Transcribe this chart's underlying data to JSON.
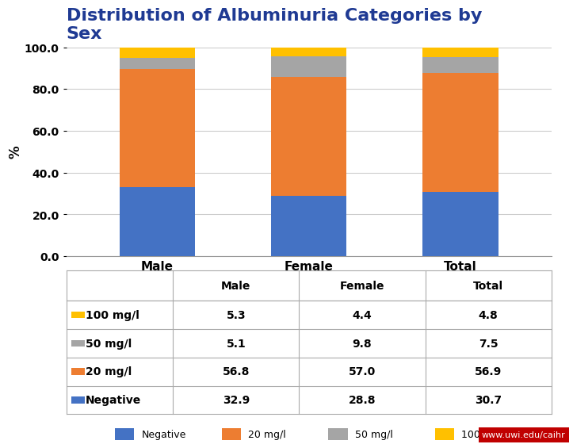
{
  "title": "Distribution of Albuminuria Categories by\nSex",
  "title_color": "#1F3A93",
  "ylabel": "%",
  "categories": [
    "Male",
    "Female",
    "Total"
  ],
  "series": {
    "Negative": [
      32.9,
      28.8,
      30.7
    ],
    "20 mg/l": [
      56.8,
      57.0,
      56.9
    ],
    "50 mg/l": [
      5.1,
      9.8,
      7.5
    ],
    "100 mg/l": [
      5.3,
      4.4,
      4.8
    ]
  },
  "colors": {
    "Negative": "#4472C4",
    "20 mg/l": "#ED7D31",
    "50 mg/l": "#A5A5A5",
    "100 mg/l": "#FFC000"
  },
  "ylim": [
    0,
    100
  ],
  "yticks": [
    0.0,
    20.0,
    40.0,
    60.0,
    80.0,
    100.0
  ],
  "bar_width": 0.5,
  "table_rows": [
    [
      "100 mg/l",
      "5.3",
      "4.4",
      "4.8"
    ],
    [
      "50 mg/l",
      "5.1",
      "9.8",
      "7.5"
    ],
    [
      "20 mg/l",
      "56.8",
      "57.0",
      "56.9"
    ],
    [
      "Negative",
      "32.9",
      "28.8",
      "30.7"
    ]
  ],
  "table_row_colors": [
    "#FFC000",
    "#A5A5A5",
    "#ED7D31",
    "#4472C4"
  ],
  "legend_order": [
    "Negative",
    "20 mg/l",
    "50 mg/l",
    "100 mg/l"
  ],
  "background_color": "#FFFFFF",
  "watermark": "www.uwi.edu/caihr",
  "watermark_bg": "#C00000",
  "watermark_color": "#FFFFFF"
}
